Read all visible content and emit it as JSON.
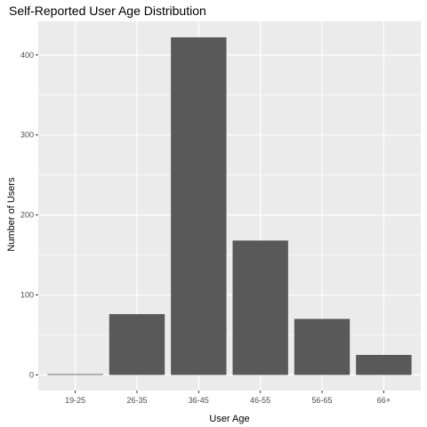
{
  "chart_data": {
    "type": "bar",
    "title": "Self-Reported User Age Distribution",
    "xlabel": "User Age",
    "ylabel": "Number of Users",
    "categories": [
      "19-25",
      "26-35",
      "36-45",
      "46-55",
      "56-65",
      "66+"
    ],
    "values": [
      1,
      76,
      422,
      168,
      70,
      25
    ],
    "ylim": [
      0,
      440
    ],
    "yticks": [
      0,
      100,
      200,
      300,
      400
    ],
    "grid": true,
    "legend": "none",
    "colors": {
      "bar": "#595959",
      "panel": "#ebebeb",
      "grid": "#ffffff"
    }
  }
}
